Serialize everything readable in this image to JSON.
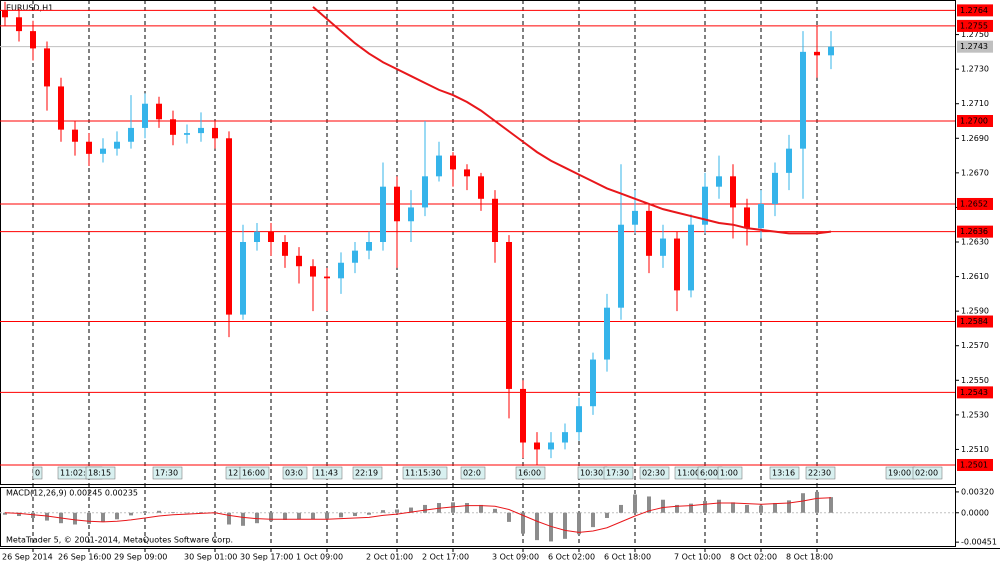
{
  "chart_data": [
    {
      "type": "candlestick",
      "title": "EURUSD,H1",
      "categories": [
        "26 Sep 2014",
        null,
        null,
        null,
        "26 Sep 16:00",
        null,
        null,
        null,
        "29 Sep 09:00",
        null,
        null,
        null,
        null,
        "30 Sep 01:00",
        null,
        null,
        null,
        "30 Sep 17:00",
        null,
        null,
        null,
        "1 Oct 09:00",
        null,
        null,
        null,
        null,
        "2 Oct 01:00",
        null,
        null,
        null,
        "2 Oct 17:00",
        null,
        null,
        null,
        null,
        "3 Oct 09:00",
        null,
        null,
        null,
        "6 Oct 02:00",
        null,
        null,
        null,
        "6 Oct 18:00",
        null,
        null,
        null,
        null,
        "7 Oct 10:00",
        null,
        null,
        null,
        "8 Oct 02:00",
        null,
        null,
        null,
        "8 Oct 18:00",
        null,
        null,
        null
      ],
      "open": [
        1.2764,
        1.276,
        1.2752,
        1.2742,
        1.272,
        1.2695,
        1.2688,
        1.2681,
        1.2684,
        1.2688,
        1.2696,
        1.271,
        1.2701,
        1.2692,
        1.2693,
        1.2696,
        1.269,
        1.2588,
        1.263,
        1.2636,
        1.263,
        1.2622,
        1.2616,
        1.261,
        1.2609,
        1.2618,
        1.2625,
        1.263,
        1.2662,
        1.2642,
        1.265,
        1.2668,
        1.268,
        1.2672,
        1.2668,
        1.2655,
        1.263,
        1.2545,
        1.2514,
        1.251,
        1.2514,
        1.252,
        1.2535,
        1.2562,
        1.2592,
        1.264,
        1.2648,
        1.2622,
        1.2632,
        1.2602,
        1.264,
        1.2662,
        1.2668,
        1.265,
        1.2638,
        1.2652,
        1.267,
        1.2684,
        1.274,
        1.2738
      ],
      "high": [
        1.2769,
        1.2765,
        1.2758,
        1.2746,
        1.2725,
        1.27,
        1.2693,
        1.269,
        1.2694,
        1.2715,
        1.2716,
        1.2714,
        1.2706,
        1.2698,
        1.2705,
        1.27,
        1.2694,
        1.264,
        1.2641,
        1.2641,
        1.2634,
        1.2627,
        1.262,
        1.2615,
        1.2624,
        1.263,
        1.2636,
        1.2676,
        1.2668,
        1.266,
        1.27,
        1.2688,
        1.2682,
        1.2675,
        1.267,
        1.266,
        1.2634,
        1.255,
        1.252,
        1.252,
        1.2525,
        1.254,
        1.2566,
        1.26,
        1.2675,
        1.266,
        1.2652,
        1.264,
        1.2636,
        1.2646,
        1.267,
        1.268,
        1.2675,
        1.2655,
        1.266,
        1.2676,
        1.2692,
        1.2752,
        1.2755,
        1.2752
      ],
      "low": [
        1.2755,
        1.2746,
        1.2735,
        1.2706,
        1.2688,
        1.268,
        1.2674,
        1.2676,
        1.268,
        1.2684,
        1.269,
        1.2696,
        1.2686,
        1.2687,
        1.2688,
        1.2684,
        1.2575,
        1.2585,
        1.2625,
        1.2622,
        1.2615,
        1.2606,
        1.259,
        1.259,
        1.26,
        1.2612,
        1.262,
        1.2625,
        1.2615,
        1.263,
        1.2645,
        1.2665,
        1.2662,
        1.266,
        1.2648,
        1.2618,
        1.2528,
        1.2505,
        1.2501,
        1.2505,
        1.251,
        1.2515,
        1.253,
        1.2555,
        1.2585,
        1.2635,
        1.2612,
        1.2615,
        1.259,
        1.2598,
        1.2635,
        1.2655,
        1.2632,
        1.2628,
        1.2632,
        1.2645,
        1.266,
        1.2655,
        1.2725,
        1.273
      ],
      "close": [
        1.276,
        1.2752,
        1.2742,
        1.272,
        1.2695,
        1.2688,
        1.2681,
        1.2684,
        1.2688,
        1.2696,
        1.271,
        1.2701,
        1.2692,
        1.2693,
        1.2696,
        1.269,
        1.2588,
        1.263,
        1.2636,
        1.263,
        1.2622,
        1.2616,
        1.261,
        1.2609,
        1.2618,
        1.2625,
        1.263,
        1.2662,
        1.2642,
        1.265,
        1.2668,
        1.268,
        1.2672,
        1.2668,
        1.2655,
        1.263,
        1.2545,
        1.2514,
        1.251,
        1.2514,
        1.252,
        1.2535,
        1.2562,
        1.2592,
        1.264,
        1.2648,
        1.2622,
        1.2632,
        1.2602,
        1.264,
        1.2662,
        1.2668,
        1.265,
        1.2638,
        1.2652,
        1.267,
        1.2684,
        1.274,
        1.2738,
        1.2743
      ],
      "up_color": "#35b4ea",
      "down_color": "#ff0000",
      "moving_average": {
        "color": "#e8171b",
        "values": [
          null,
          null,
          null,
          null,
          null,
          null,
          null,
          null,
          null,
          null,
          null,
          null,
          null,
          null,
          null,
          null,
          null,
          null,
          null,
          null,
          null,
          null,
          1.2766,
          1.2759,
          1.2752,
          1.2745,
          1.2739,
          1.2734,
          1.273,
          1.2726,
          1.2722,
          1.2718,
          1.2715,
          1.2711,
          1.2706,
          1.27,
          1.2694,
          1.2688,
          1.2682,
          1.2677,
          1.2673,
          1.2669,
          1.2665,
          1.2661,
          1.2658,
          1.2655,
          1.2652,
          1.2649,
          1.2647,
          1.2645,
          1.2643,
          1.2641,
          1.264,
          1.2638,
          1.2637,
          1.2636,
          1.2635,
          1.2635,
          1.2635,
          1.2636
        ]
      },
      "ylim": [
        1.249,
        1.277
      ],
      "yticks": [
        {
          "value": 1.275,
          "label": "1.2750"
        },
        {
          "value": 1.273,
          "label": "1.2730"
        },
        {
          "value": 1.271,
          "label": "1.2710"
        },
        {
          "value": 1.269,
          "label": "1.2690"
        },
        {
          "value": 1.267,
          "label": "1.2670"
        },
        {
          "value": 1.265,
          "label": "1.2650"
        },
        {
          "value": 1.263,
          "label": "1.2630"
        },
        {
          "value": 1.261,
          "label": "1.2610"
        },
        {
          "value": 1.259,
          "label": "1.2590"
        },
        {
          "value": 1.257,
          "label": "1.2570"
        },
        {
          "value": 1.255,
          "label": "1.2550"
        },
        {
          "value": 1.253,
          "label": "1.2530"
        },
        {
          "value": 1.251,
          "label": "1.2510"
        }
      ],
      "levels": [
        1.2764,
        1.2755,
        {
          "value": 1.27,
          "label": "1.2700"
        },
        1.2652,
        1.2636,
        1.2584,
        1.2543,
        1.2501
      ],
      "level_color": "#ff0000",
      "current_price": 1.2743,
      "trade_labels": [
        "0",
        "11:02:55",
        "18:15",
        "17:30",
        "12",
        "16:00",
        "03:0",
        "11:43",
        "22:19",
        "11:15:30",
        "02:0",
        "16:00",
        "10:30",
        "17:30",
        "02:30",
        "11:00",
        "6:00",
        "1:00",
        "13:16",
        "22:30",
        "19:00",
        "02:00"
      ]
    },
    {
      "type": "macd",
      "title": "MACD(12,26,9) 0.00245 0.00235",
      "values": [
        -0.0003,
        -0.0005,
        -0.0008,
        -0.0012,
        -0.0016,
        -0.0018,
        -0.0017,
        -0.0014,
        -0.001,
        -0.0004,
        0.0002,
        0.0003,
        0.0001,
        0.0,
        0.0001,
        0.0,
        -0.0018,
        -0.002,
        -0.0016,
        -0.0013,
        -0.0011,
        -0.001,
        -0.001,
        -0.0009,
        -0.0007,
        -0.0005,
        -0.0003,
        0.0004,
        0.0005,
        0.0008,
        0.0012,
        0.0015,
        0.0016,
        0.0015,
        0.0012,
        0.0006,
        -0.0014,
        -0.0032,
        -0.0042,
        -0.0044,
        -0.004,
        -0.0033,
        -0.0022,
        -0.0008,
        0.0012,
        0.0028,
        0.0025,
        0.002,
        0.0012,
        0.0014,
        0.0018,
        0.002,
        0.0016,
        0.0012,
        0.0011,
        0.0015,
        0.0019,
        0.003,
        0.0032,
        0.0024
      ],
      "color": "#8c8c8c",
      "signal": {
        "color": "#e8171b",
        "values": [
          0.0,
          -0.0001,
          -0.0003,
          -0.0005,
          -0.0008,
          -0.0011,
          -0.0013,
          -0.0014,
          -0.0013,
          -0.0011,
          -0.0008,
          -0.0005,
          -0.0003,
          -0.0002,
          -0.0001,
          0.0,
          -0.0004,
          -0.0007,
          -0.0009,
          -0.001,
          -0.001,
          -0.001,
          -0.001,
          -0.001,
          -0.0009,
          -0.0008,
          -0.0007,
          -0.0004,
          -0.0002,
          0.0001,
          0.0004,
          0.0007,
          0.0009,
          0.0011,
          0.0011,
          0.001,
          0.0005,
          -0.0004,
          -0.0013,
          -0.0021,
          -0.0027,
          -0.003,
          -0.0028,
          -0.0023,
          -0.0014,
          -0.0005,
          0.0003,
          0.0008,
          0.001,
          0.0011,
          0.0013,
          0.0015,
          0.0015,
          0.0014,
          0.0013,
          0.0014,
          0.0015,
          0.0018,
          0.0022,
          0.0023
        ]
      },
      "ylim": [
        -0.0051,
        0.0038
      ],
      "yticks": [
        {
          "value": 0.0032,
          "label": "0.00320"
        },
        {
          "value": 0,
          "label": "0.0000"
        },
        -0.00451
      ],
      "copyright": "MetaTrader 5, © 2001-2014, MetaQuotes Software Corp."
    }
  ]
}
